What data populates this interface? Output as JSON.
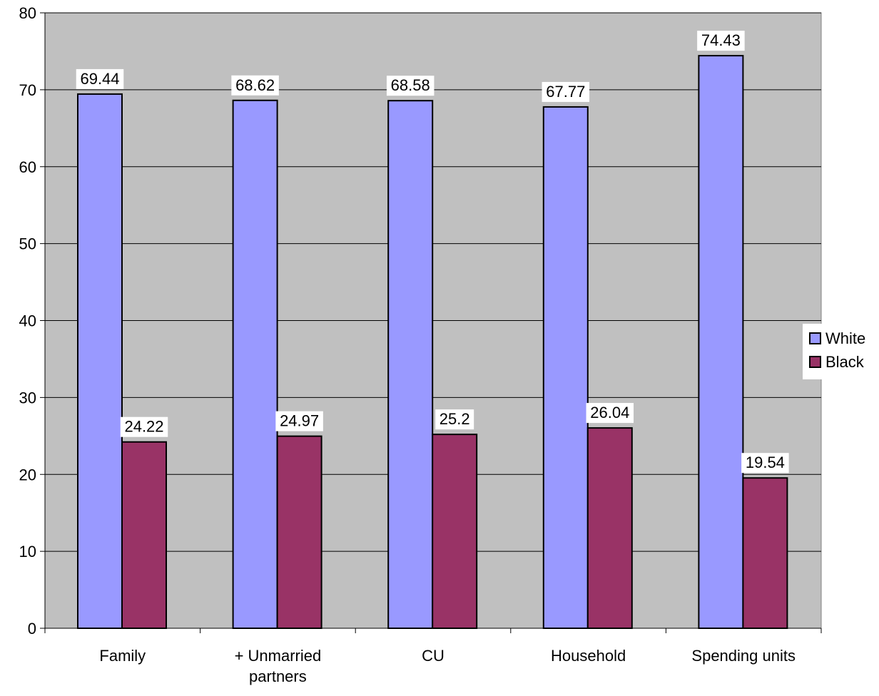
{
  "chart_data": {
    "type": "bar",
    "title": "",
    "xlabel": "",
    "ylabel": "",
    "categories": [
      [
        "Family"
      ],
      [
        "+ Unmarried",
        "partners"
      ],
      [
        "CU"
      ],
      [
        "Household"
      ],
      [
        "Spending units"
      ]
    ],
    "series": [
      {
        "name": "White",
        "color": "#9999FF",
        "values": [
          69.44,
          68.62,
          68.58,
          67.77,
          74.43
        ],
        "labels": [
          "69.44",
          "68.62",
          "68.58",
          "67.77",
          "74.43"
        ]
      },
      {
        "name": "Black",
        "color": "#993366",
        "values": [
          24.22,
          24.97,
          25.2,
          26.04,
          19.54
        ],
        "labels": [
          "24.22",
          "24.97",
          "25.2",
          "26.04",
          "19.54"
        ]
      }
    ],
    "ylim": [
      0,
      80
    ],
    "yticks": [
      0,
      10,
      20,
      30,
      40,
      50,
      60,
      70,
      80
    ],
    "grid": true,
    "plot_background": "#C0C0C0",
    "legend_position": "right",
    "data_labels": true
  }
}
